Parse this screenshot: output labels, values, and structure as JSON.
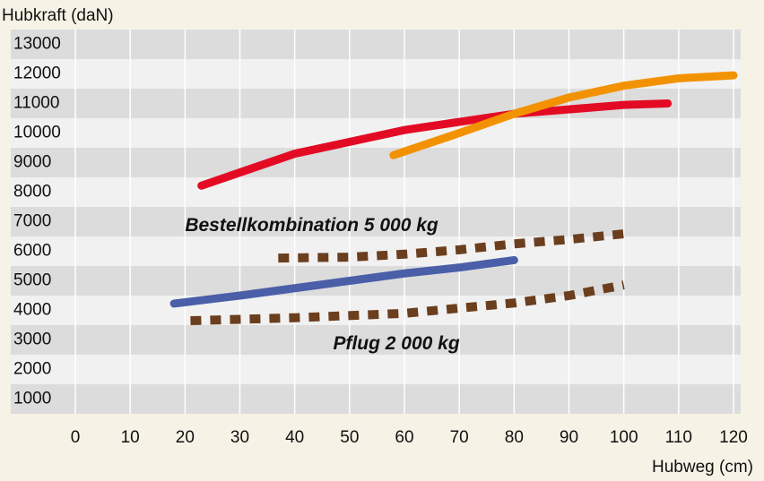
{
  "chart_data": {
    "type": "line",
    "y_label": "Hubkraft (daN)",
    "x_label": "Hubweg (cm)",
    "xlim": [
      0,
      120
    ],
    "xticks": [
      0,
      10,
      20,
      30,
      40,
      50,
      60,
      70,
      80,
      90,
      100,
      110,
      120
    ],
    "ylim": [
      500,
      13500
    ],
    "yticks": [
      1000,
      2000,
      3000,
      4000,
      5000,
      6000,
      7000,
      8000,
      9000,
      10000,
      11000,
      12000,
      13000
    ],
    "grid": true,
    "series": [
      {
        "color": "#e30b24",
        "style": "solid",
        "x": [
          23,
          40,
          60,
          80,
          100,
          108
        ],
        "values": [
          8220,
          9300,
          10100,
          10650,
          10950,
          11000
        ]
      },
      {
        "color": "#f39200",
        "style": "solid",
        "x": [
          58,
          70,
          80,
          90,
          100,
          110,
          120
        ],
        "values": [
          9250,
          10000,
          10650,
          11200,
          11600,
          11850,
          11950
        ]
      },
      {
        "color": "#4a5fa8",
        "style": "solid",
        "x": [
          18,
          30,
          40,
          50,
          60,
          70,
          80
        ],
        "values": [
          4230,
          4500,
          4750,
          5000,
          5250,
          5450,
          5700
        ]
      },
      {
        "color": "#6b3e1e",
        "style": "dotted",
        "x": [
          37,
          50,
          60,
          70,
          80,
          90,
          100
        ],
        "values": [
          5770,
          5800,
          5900,
          6050,
          6250,
          6400,
          6590
        ]
      },
      {
        "color": "#6b3e1e",
        "style": "dotted",
        "x": [
          21,
          40,
          60,
          80,
          90,
          100
        ],
        "values": [
          3650,
          3750,
          3900,
          4250,
          4500,
          4860
        ]
      }
    ],
    "annotations": [
      {
        "text": "Bestellkombination 5 000 kg",
        "x": 20,
        "y": 7000
      },
      {
        "text": "Pflug 2 000 kg",
        "x": 47,
        "y": 3000
      }
    ]
  }
}
